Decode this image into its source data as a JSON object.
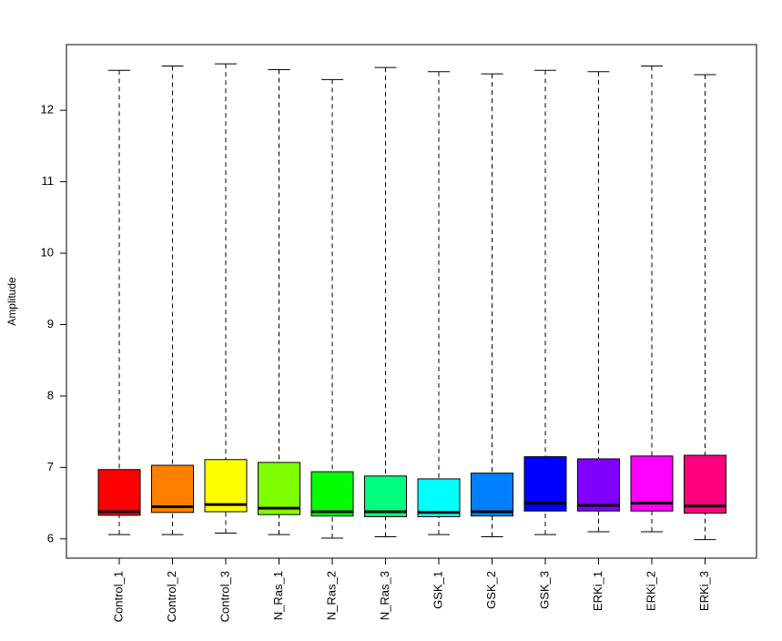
{
  "chart_data": {
    "type": "box",
    "y_label": "Amplitude",
    "categories": [
      "Control_1",
      "Control_2",
      "Control_3",
      "N_Ras_1",
      "N_Ras_2",
      "N_Ras_3",
      "GSK_1",
      "GSK_2",
      "GSK_3",
      "ERKi_1",
      "ERKi_2",
      "ERKi_3"
    ],
    "colors": [
      "#FF0000",
      "#FF8000",
      "#FFFF00",
      "#80FF00",
      "#00FF00",
      "#00FF80",
      "#00FFFF",
      "#0080FF",
      "#0000FF",
      "#8000FF",
      "#FF00FF",
      "#FF0080"
    ],
    "whisker_low": [
      6.06,
      6.06,
      6.08,
      6.06,
      6.01,
      6.03,
      6.06,
      6.03,
      6.06,
      6.1,
      6.1,
      5.99
    ],
    "q1": [
      6.33,
      6.37,
      6.38,
      6.34,
      6.32,
      6.31,
      6.31,
      6.32,
      6.39,
      6.39,
      6.39,
      6.36
    ],
    "median": [
      6.38,
      6.45,
      6.48,
      6.43,
      6.38,
      6.38,
      6.37,
      6.38,
      6.5,
      6.47,
      6.5,
      6.46
    ],
    "q3": [
      6.97,
      7.03,
      7.11,
      7.07,
      6.94,
      6.88,
      6.84,
      6.92,
      7.15,
      7.12,
      7.16,
      7.17
    ],
    "whisker_high": [
      12.56,
      12.62,
      12.65,
      12.57,
      12.43,
      12.6,
      12.54,
      12.51,
      12.56,
      12.54,
      12.62,
      12.5
    ],
    "ylim": [
      5.73,
      12.92
    ],
    "yticks": [
      6,
      7,
      8,
      9,
      10,
      11,
      12
    ]
  }
}
